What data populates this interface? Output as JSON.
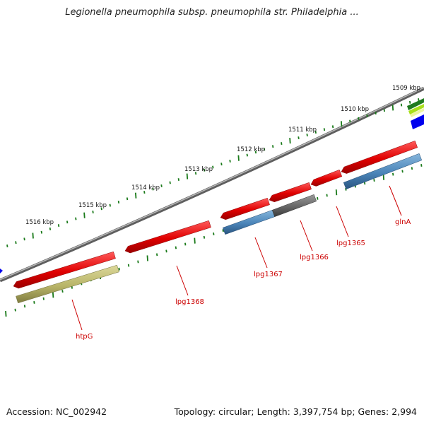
{
  "title": "Legionella pneumophila subsp. pneumophila str. Philadelphia ...",
  "footer": {
    "accession": "Accession: NC_002942",
    "summary": "Topology: circular; Length: 3,397,754 bp; Genes: 2,994"
  },
  "colors": {
    "backbone": "#7a7a7a",
    "tick": "#1a7a1a",
    "cds_red": "#e01010",
    "olive": "#b8b468",
    "steel_blue": "#4a84b8",
    "dark_gray": "#666666",
    "blue": "#0000ee",
    "label": "#cc0000"
  },
  "map": {
    "kbp_labels": [
      "1516 kbp",
      "1515 kbp",
      "1514 kbp",
      "1513 kbp",
      "1512 kbp",
      "1511 kbp",
      "1510 kbp",
      "1509 kbp"
    ],
    "gene_labels": [
      "htpG",
      "lpg1368",
      "lpg1367",
      "lpg1366",
      "lpg1365",
      "glnA"
    ]
  }
}
